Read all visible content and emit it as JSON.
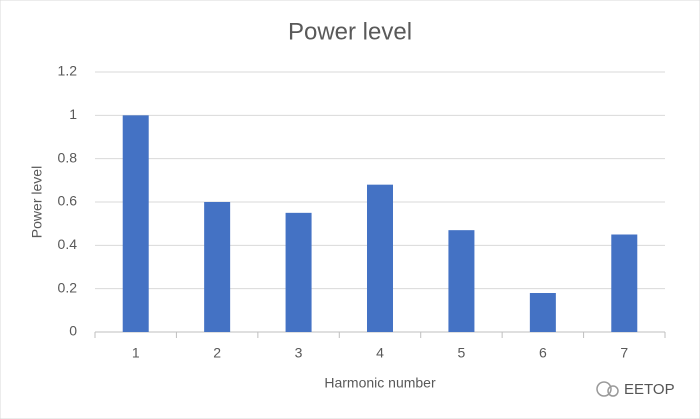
{
  "chart_data": {
    "type": "bar",
    "title": "Power level",
    "x_label": "Harmonic number",
    "y_label": "Power level",
    "categories": [
      "1",
      "2",
      "3",
      "4",
      "5",
      "6",
      "7"
    ],
    "values": [
      1.0,
      0.6,
      0.55,
      0.68,
      0.47,
      0.18,
      0.45
    ],
    "color": "#4472c4",
    "ylim": [
      0,
      1.2
    ],
    "yticks": [
      0,
      0.2,
      0.4,
      0.6,
      0.8,
      1,
      1.2
    ],
    "grid": true
  },
  "watermark": "EETOP"
}
